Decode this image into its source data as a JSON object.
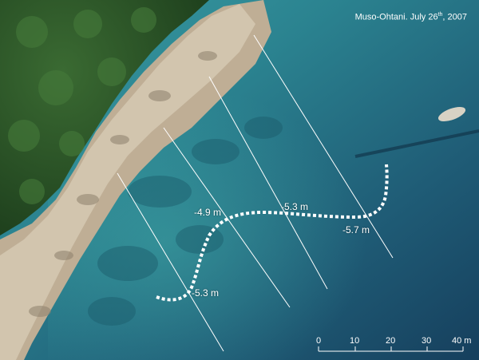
{
  "caption": {
    "site": "Muso-Ohtani. July 26",
    "day_suffix": "th",
    "year": ", 2007"
  },
  "depth_labels": {
    "d1": "-4.9 m",
    "d2": "-5.3 m",
    "d3": "-5.7 m",
    "d4": "-5.3 m"
  },
  "scale_bar": {
    "ticks": [
      "0",
      "10",
      "20",
      "30",
      "40 m"
    ]
  },
  "colors": {
    "sea_shallow": "#2f8c98",
    "sea_deep": "#173f5e",
    "forest": "#2b5529",
    "rock": "#c6b8a0",
    "overlay": "#ffffff"
  }
}
